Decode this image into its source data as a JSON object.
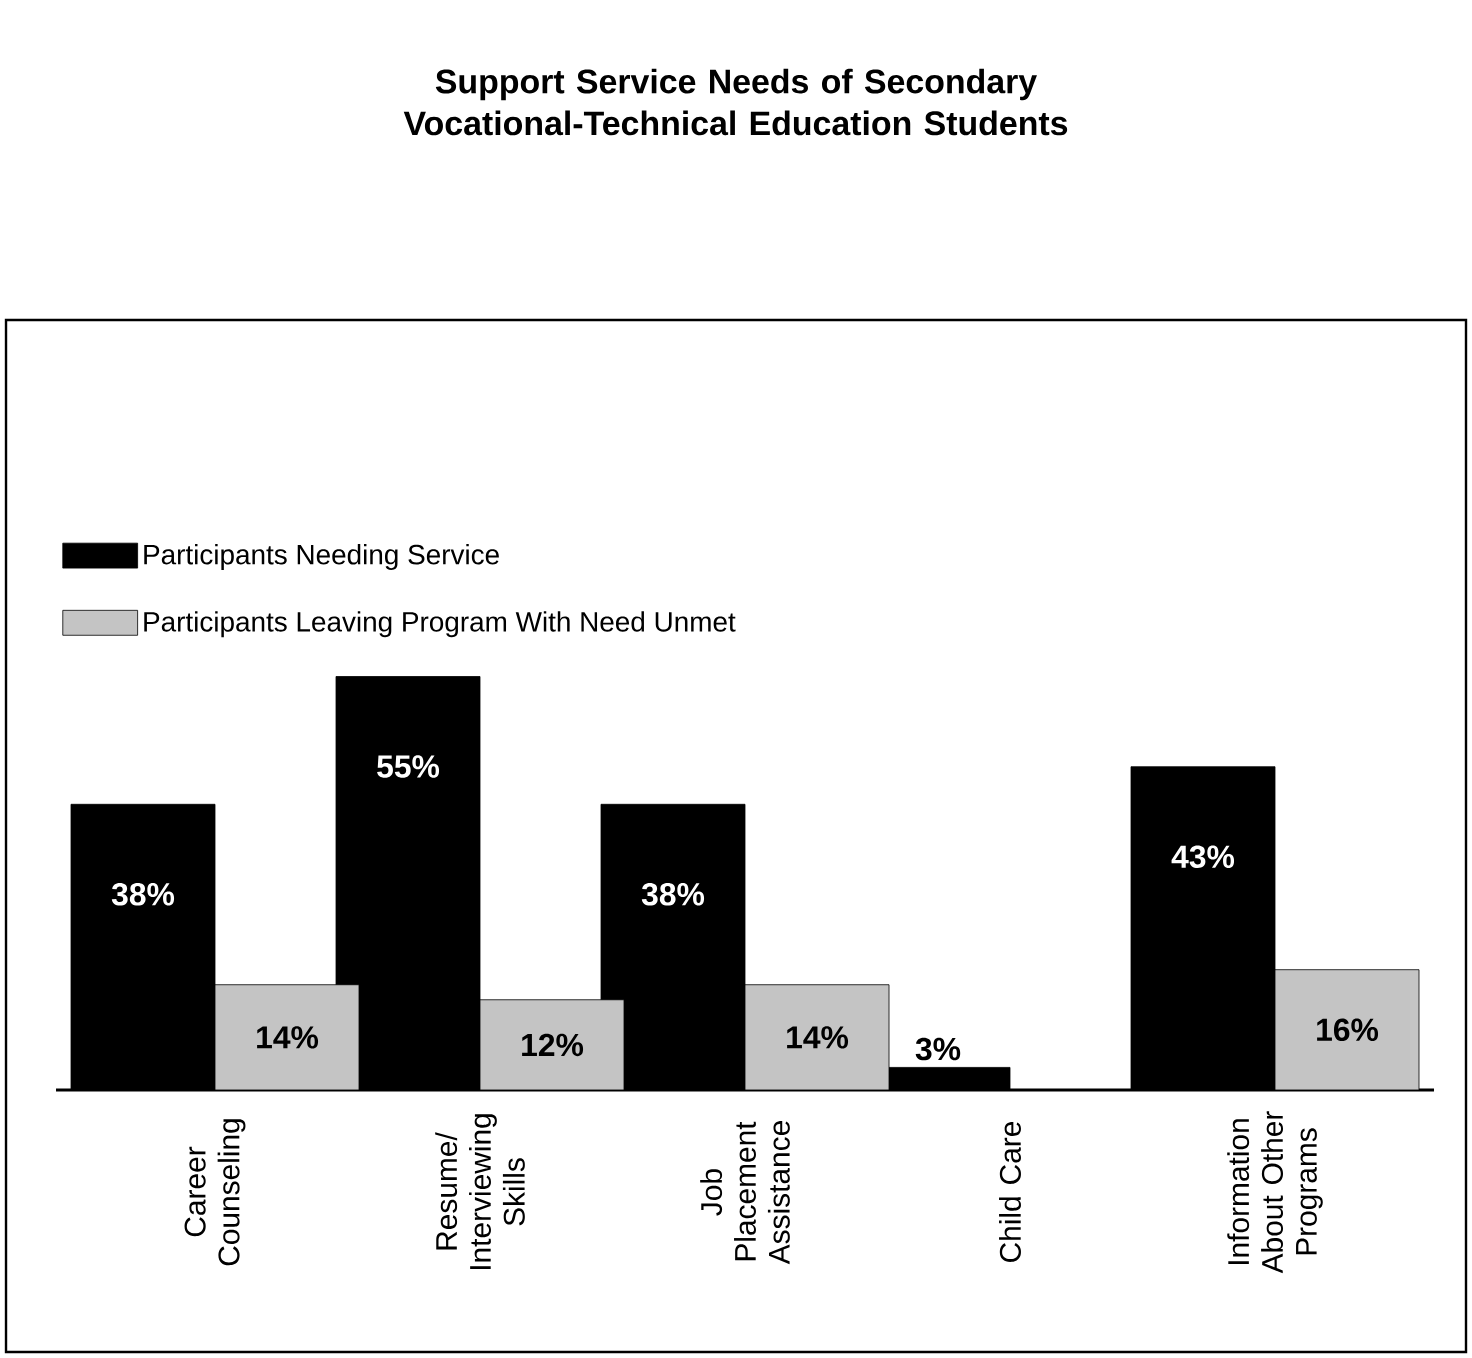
{
  "chart_data": {
    "type": "bar",
    "title": "Support Service Needs of Secondary Vocational-Technical Education Students",
    "categories": [
      "Career Counseling",
      "Resume/ Interviewing Skills",
      "Job Placement Assistance",
      "Child Care",
      "Information About Other Programs"
    ],
    "series": [
      {
        "name": "Participants Needing Service",
        "color": "#000000",
        "values": [
          38,
          55,
          38,
          3,
          43
        ],
        "value_labels": [
          "38%",
          "55%",
          "38%",
          "3%",
          "43%"
        ]
      },
      {
        "name": "Participants Leaving Program With Need Unmet",
        "color": "#c4c4c4",
        "values": [
          14,
          12,
          14,
          null,
          16
        ],
        "value_labels": [
          "14%",
          "12%",
          "14%",
          null,
          "16%"
        ]
      }
    ],
    "legend": "top left"
  }
}
